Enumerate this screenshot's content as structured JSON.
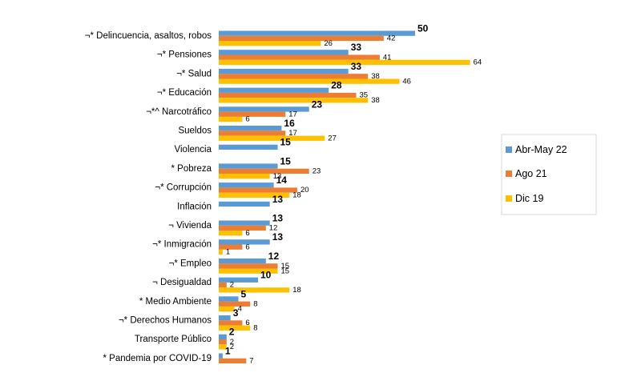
{
  "chart_data": {
    "type": "bar",
    "orientation": "horizontal",
    "title": "",
    "xlabel": "",
    "ylabel": "",
    "xlim": [
      0,
      70
    ],
    "grid": false,
    "legend_position": "right",
    "categories": [
      "¬* Delincuencia, asaltos, robos",
      "¬* Pensiones",
      "¬* Salud",
      "¬* Educación",
      "¬*^ Narcotráfico",
      "Sueldos",
      "Violencia",
      "* Pobreza",
      "¬* Corrupción",
      "Inflación",
      "¬ Vivienda",
      "¬* Inmigración",
      "¬* Empleo",
      "¬ Desigualdad",
      "* Medio Ambiente",
      "¬* Derechos Humanos",
      "Transporte Público",
      "* Pandemia por COVID-19"
    ],
    "series": [
      {
        "name": "Abr-May 22",
        "color": "#5B9BD5",
        "values": [
          50,
          33,
          33,
          28,
          23,
          16,
          15,
          15,
          14,
          13,
          13,
          13,
          12,
          10,
          5,
          3,
          2,
          1
        ]
      },
      {
        "name": "Ago 21",
        "color": "#ED7D31",
        "values": [
          42,
          41,
          38,
          35,
          17,
          17,
          null,
          23,
          20,
          null,
          12,
          6,
          15,
          2,
          8,
          6,
          2,
          7
        ]
      },
      {
        "name": "Dic 19",
        "color": "#FFC000",
        "values": [
          26,
          64,
          46,
          38,
          6,
          27,
          null,
          13,
          18,
          null,
          6,
          1,
          15,
          18,
          4,
          8,
          2,
          null
        ]
      }
    ]
  }
}
